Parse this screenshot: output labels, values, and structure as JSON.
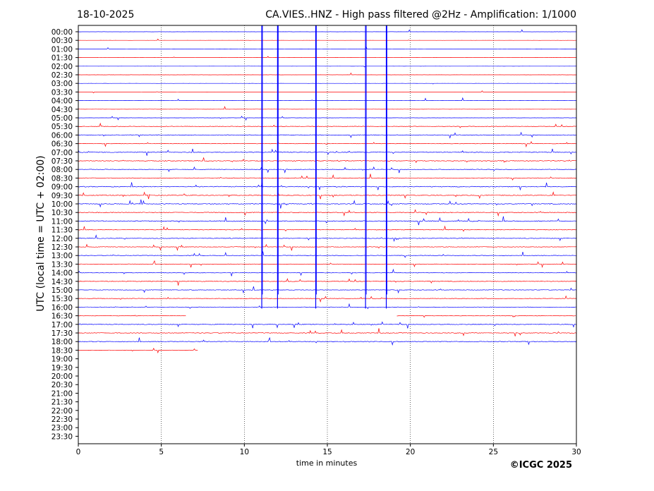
{
  "header": {
    "date": "18-10-2025",
    "title": "CA.VIES..HNZ - High pass filtered @2Hz - Amplification: 1/1000"
  },
  "footer": {
    "copyright": "©ICGC 2025"
  },
  "colors": {
    "odd_row": "#ff0000",
    "even_row": "#0000ff",
    "axis": "#000000",
    "grid": "#000000"
  },
  "chart_data": {
    "type": "line",
    "title": "CA.VIES..HNZ - High pass filtered @2Hz - Amplification: 1/1000",
    "subtitle": "18-10-2025",
    "xlabel": "time in minutes",
    "ylabel": "UTC (local time = UTC + 02:00)",
    "xlim": [
      0,
      30
    ],
    "x_ticks": [
      "0",
      "5",
      "10",
      "15",
      "20",
      "25",
      "30"
    ],
    "x_tick_values": [
      0,
      5,
      10,
      15,
      20,
      25,
      30
    ],
    "vertical_grid": "dotted at 5-minute intervals",
    "rows": [
      "00:00",
      "00:30",
      "01:00",
      "01:30",
      "02:00",
      "02:30",
      "03:00",
      "03:30",
      "04:00",
      "04:30",
      "05:00",
      "05:30",
      "06:00",
      "06:30",
      "07:00",
      "07:30",
      "08:00",
      "08:30",
      "09:00",
      "09:30",
      "10:00",
      "10:30",
      "11:00",
      "11:30",
      "12:00",
      "12:30",
      "13:00",
      "13:30",
      "14:00",
      "14:30",
      "15:00",
      "15:30",
      "16:00",
      "16:30",
      "17:00",
      "17:30",
      "18:00",
      "18:30",
      "19:00",
      "19:30",
      "20:00",
      "20:30",
      "21:00",
      "21:30",
      "22:00",
      "22:30",
      "23:00",
      "23:30"
    ],
    "row_colors_cycle": [
      "blue",
      "red"
    ],
    "recorded_until": "18:30 row, approx. 7.2 minutes",
    "row_activity": [
      0.12,
      0.1,
      0.15,
      0.1,
      0.1,
      0.12,
      0.12,
      0.1,
      0.14,
      0.18,
      0.18,
      0.5,
      0.7,
      0.5,
      0.75,
      0.8,
      0.55,
      0.6,
      0.85,
      0.85,
      0.8,
      0.8,
      0.9,
      0.7,
      0.65,
      0.6,
      0.55,
      0.5,
      0.6,
      0.65,
      0.6,
      0.55,
      0.6,
      0.55,
      0.7,
      0.75,
      0.7,
      0.3
    ],
    "row_extents": [
      {
        "row": "00:30",
        "from": 0,
        "to": 30
      },
      {
        "row": "16:30",
        "from": 0,
        "to": 6.5,
        "gap_to": 19.2
      },
      {
        "row": "18:30",
        "from": 0,
        "to": 7.2
      }
    ],
    "large_events_minutes": [
      11.05,
      12.0,
      14.3,
      17.3,
      18.55
    ]
  }
}
